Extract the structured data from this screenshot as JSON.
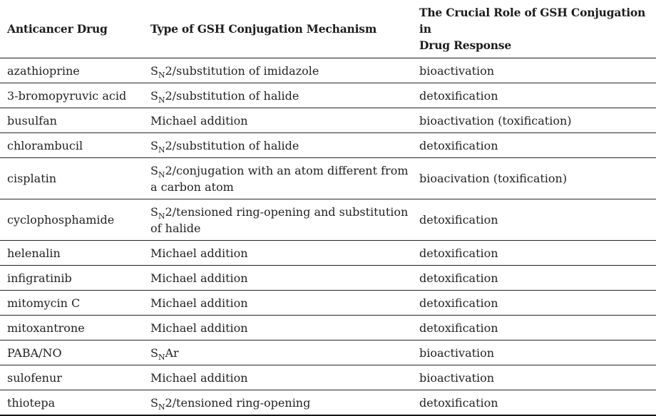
{
  "colors": {
    "text": "#222222",
    "rule": "#262626",
    "background": "#ffffff"
  },
  "table": {
    "columns": [
      {
        "label": "Anticancer Drug"
      },
      {
        "label": "Type of GSH Conjugation Mechanism"
      },
      {
        "label": "The Crucial Role of GSH Conjugation in\nDrug Response"
      }
    ],
    "rows": [
      {
        "drug": "azathioprine",
        "mechanism": "S~N~2/substitution of imidazole",
        "role": "bioactivation"
      },
      {
        "drug": "3-bromopyruvic acid",
        "mechanism": "S~N~2/substitution of halide",
        "role": "detoxification"
      },
      {
        "drug": "busulfan",
        "mechanism": "Michael addition",
        "role": "bioactivation (toxification)"
      },
      {
        "drug": "chlorambucil",
        "mechanism": "S~N~2/substitution of halide",
        "role": "detoxification"
      },
      {
        "drug": "cisplatin",
        "mechanism": "S~N~2/conjugation with an atom different from\na carbon atom",
        "role": "bioacivation (toxification)"
      },
      {
        "drug": "cyclophosphamide",
        "mechanism": "S~N~2/tensioned ring-opening and substitution\nof halide",
        "role": "detoxification"
      },
      {
        "drug": "helenalin",
        "mechanism": "Michael addition",
        "role": "detoxification"
      },
      {
        "drug": "infigratinib",
        "mechanism": "Michael addition",
        "role": "detoxification"
      },
      {
        "drug": "mitomycin C",
        "mechanism": "Michael addition",
        "role": "detoxification"
      },
      {
        "drug": "mitoxantrone",
        "mechanism": "Michael addition",
        "role": "detoxification"
      },
      {
        "drug": "PABA/NO",
        "mechanism": "S~N~Ar",
        "role": "bioactivation"
      },
      {
        "drug": "sulofenur",
        "mechanism": "Michael addition",
        "role": "bioactivation"
      },
      {
        "drug": "thiotepa",
        "mechanism": "S~N~2/tensioned ring-opening",
        "role": "detoxification"
      }
    ]
  }
}
